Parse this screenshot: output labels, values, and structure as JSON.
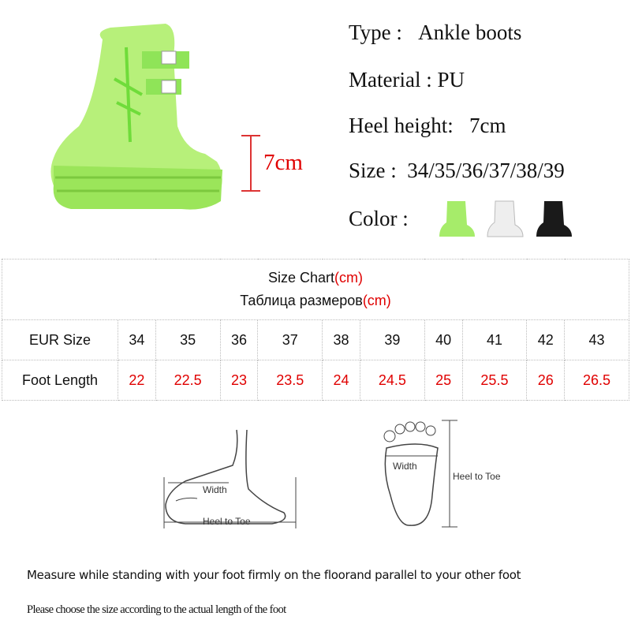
{
  "specs": {
    "type_label": "Type :",
    "type_value": "Ankle boots",
    "material_label": "Material :",
    "material_value": "PU",
    "heel_label": "Heel height:",
    "heel_value": "7cm",
    "size_label": "Size  :",
    "size_value": "34/35/36/37/38/39",
    "color_label": "Color :"
  },
  "heel_annotation": "7cm",
  "colors": {
    "green": "#a6ec6a",
    "white": "#f0f0f0",
    "black": "#1a1a1a",
    "accent_red": "#e00000"
  },
  "size_chart": {
    "title": "Size Chart",
    "title_unit": "(cm)",
    "title_ru": "Таблица размеров",
    "title_ru_unit": "(cm)",
    "row1_label": "EUR Size",
    "eur_sizes": [
      "34",
      "35",
      "36",
      "37",
      "38",
      "39",
      "40",
      "41",
      "42",
      "43"
    ],
    "row2_label": "Foot Length",
    "foot_lengths": [
      "22",
      "22.5",
      "23",
      "23.5",
      "24",
      "24.5",
      "25",
      "25.5",
      "26",
      "26.5"
    ]
  },
  "diagram": {
    "side_width": "Width",
    "side_length": "Heel to Toe",
    "top_width": "Width",
    "top_length": "Heel to Toe"
  },
  "notes": {
    "measure": "Measure while standing with your foot firmly on the floorand parallel to your other foot",
    "choose": "Please choose the size according to the actual length of the foot"
  }
}
